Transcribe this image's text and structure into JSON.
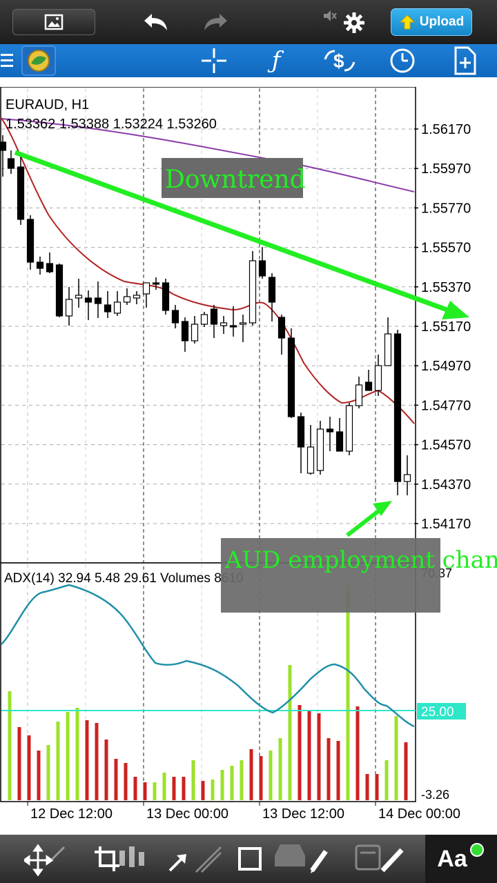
{
  "upload_label": "Upload",
  "chart": {
    "symbol": "EURAUD, H1",
    "ohlc": "1.53362 1.53388 1.53224 1.53260",
    "price_ticks": [
      "1.56170",
      "1.55970",
      "1.55770",
      "1.55570",
      "1.55370",
      "1.55170",
      "1.54970",
      "1.54770",
      "1.54570",
      "1.54370",
      "1.54170"
    ],
    "indicator_label": "ADX(14) 32.94 5.48 29.61 Volumes 8610",
    "indicator_max": "70.37",
    "indicator_level": "25.00",
    "indicator_min": "-3.26",
    "time_ticks": [
      "12 Dec 12:00",
      "13 Dec 00:00",
      "13 Dec 12:00",
      "14 Dec 00:00"
    ],
    "annotation_downtrend": "Downtrend",
    "annotation_aud": "AUD employment change"
  },
  "colors": {
    "bull": "#ffffff",
    "bear": "#000000",
    "ma_fast": "#b22222",
    "ma_slow": "#8a3aa8",
    "arrow": "#22ee22",
    "adx": "#1f8fa8",
    "vol_up": "#9be22a",
    "vol_down": "#cc2222",
    "level": "#2ee6c8",
    "toolbar": "#1673c8"
  },
  "toolbar_icons": [
    "menu-icon",
    "app-logo-icon",
    "crosshair-icon",
    "indicator-f-icon",
    "trade-icon",
    "clock-icon",
    "new-order-icon"
  ],
  "bottom_icons": [
    "move-icon",
    "crop-icon",
    "candles-icon",
    "arrow-draw-icon",
    "rectangle-icon",
    "tray-icon",
    "pencil-icon",
    "document-icon",
    "text-size-icon"
  ]
}
